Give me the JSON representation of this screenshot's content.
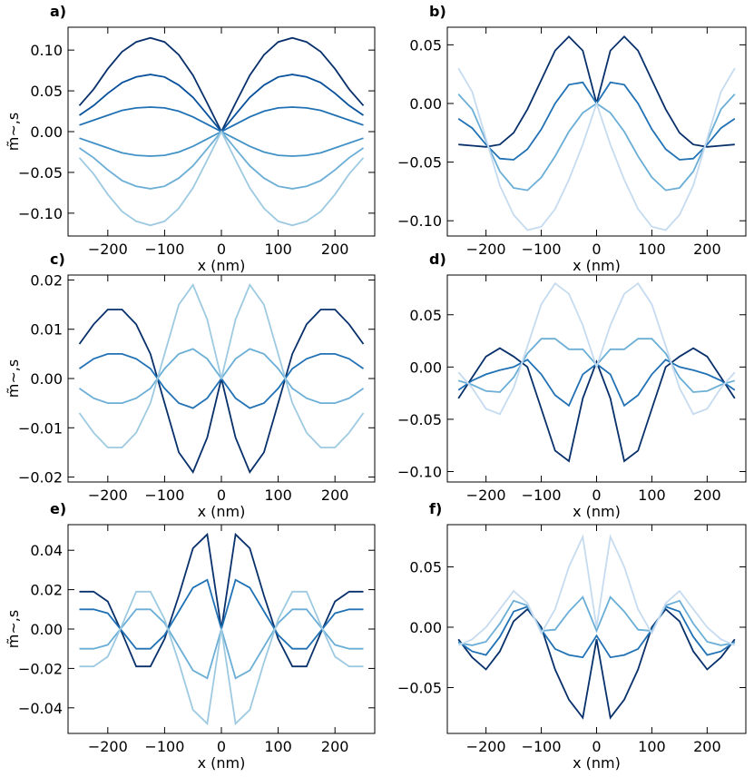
{
  "chart_data": [
    {
      "type": "line",
      "panel_label": "a)",
      "xlabel": "x (nm)",
      "ylabel": "m̃∼,s",
      "x": [
        -250,
        -225,
        -200,
        -175,
        -150,
        -125,
        -100,
        -75,
        -50,
        -25,
        0,
        25,
        50,
        75,
        100,
        125,
        150,
        175,
        200,
        225,
        250
      ],
      "xlim": [
        -270,
        270
      ],
      "ylim": [
        -0.128,
        0.128
      ],
      "xticks": [
        {
          "value": -200,
          "label": "−200"
        },
        {
          "value": -100,
          "label": "−100"
        },
        0,
        100,
        200
      ],
      "yticks": [
        {
          "value": -0.1,
          "label": "−0.10"
        },
        {
          "value": -0.05,
          "label": "−0.05"
        },
        {
          "value": 0,
          "label": "0.00"
        },
        {
          "value": 0.05,
          "label": "0.05"
        },
        {
          "value": 0.1,
          "label": "0.10"
        }
      ],
      "series": [
        {
          "color": "#08306b",
          "values": [
            0.032,
            0.052,
            0.077,
            0.098,
            0.11,
            0.115,
            0.11,
            0.094,
            0.069,
            0.035,
            0,
            0.035,
            0.069,
            0.094,
            0.11,
            0.115,
            0.11,
            0.098,
            0.077,
            0.052,
            0.032
          ]
        },
        {
          "color": "#08519c",
          "values": [
            0.02,
            0.032,
            0.047,
            0.06,
            0.067,
            0.07,
            0.067,
            0.057,
            0.042,
            0.021,
            0,
            0.021,
            0.042,
            0.057,
            0.067,
            0.07,
            0.067,
            0.06,
            0.047,
            0.032,
            0.02
          ]
        },
        {
          "color": "#2171b5",
          "values": [
            0.008,
            0.014,
            0.02,
            0.026,
            0.029,
            0.03,
            0.029,
            0.025,
            0.018,
            0.009,
            0,
            0.009,
            0.018,
            0.025,
            0.029,
            0.03,
            0.029,
            0.026,
            0.02,
            0.014,
            0.008
          ]
        },
        {
          "color": "#4292c6",
          "values": [
            -0.008,
            -0.014,
            -0.02,
            -0.026,
            -0.029,
            -0.03,
            -0.029,
            -0.025,
            -0.018,
            -0.009,
            0,
            -0.009,
            -0.018,
            -0.025,
            -0.029,
            -0.03,
            -0.029,
            -0.026,
            -0.02,
            -0.014,
            -0.008
          ]
        },
        {
          "color": "#6baed6",
          "values": [
            -0.02,
            -0.032,
            -0.047,
            -0.06,
            -0.067,
            -0.07,
            -0.067,
            -0.057,
            -0.042,
            -0.021,
            0,
            -0.021,
            -0.042,
            -0.057,
            -0.067,
            -0.07,
            -0.067,
            -0.06,
            -0.047,
            -0.032,
            -0.02
          ]
        },
        {
          "color": "#9ecae1",
          "values": [
            -0.032,
            -0.052,
            -0.077,
            -0.098,
            -0.11,
            -0.115,
            -0.11,
            -0.094,
            -0.069,
            -0.035,
            0,
            -0.035,
            -0.069,
            -0.094,
            -0.11,
            -0.115,
            -0.11,
            -0.098,
            -0.077,
            -0.052,
            -0.032
          ]
        }
      ]
    },
    {
      "type": "line",
      "panel_label": "b)",
      "xlabel": "x (nm)",
      "x": [
        -250,
        -225,
        -200,
        -175,
        -150,
        -125,
        -100,
        -75,
        -50,
        -25,
        0,
        25,
        50,
        75,
        100,
        125,
        150,
        175,
        200,
        225,
        250
      ],
      "xlim": [
        -270,
        270
      ],
      "ylim": [
        -0.113,
        0.065
      ],
      "xticks": [
        {
          "value": -200,
          "label": "−200"
        },
        {
          "value": -100,
          "label": "−100"
        },
        0,
        100,
        200
      ],
      "yticks": [
        {
          "value": -0.1,
          "label": "−0.10"
        },
        {
          "value": -0.05,
          "label": "−0.05"
        },
        {
          "value": 0,
          "label": "0.00"
        },
        {
          "value": 0.05,
          "label": "0.05"
        }
      ],
      "series": [
        {
          "color": "#08306b",
          "values": [
            -0.035,
            -0.036,
            -0.037,
            -0.035,
            -0.025,
            -0.005,
            0.02,
            0.045,
            0.057,
            0.045,
            0,
            0.045,
            0.057,
            0.045,
            0.02,
            -0.005,
            -0.025,
            -0.035,
            -0.037,
            -0.036,
            -0.035
          ]
        },
        {
          "color": "#2171b5",
          "values": [
            -0.013,
            -0.021,
            -0.035,
            -0.047,
            -0.048,
            -0.039,
            -0.022,
            0.0,
            0.016,
            0.018,
            0,
            0.018,
            0.016,
            0.0,
            -0.022,
            -0.039,
            -0.048,
            -0.047,
            -0.035,
            -0.021,
            -0.013
          ]
        },
        {
          "color": "#6baed6",
          "values": [
            0.008,
            -0.005,
            -0.032,
            -0.058,
            -0.072,
            -0.074,
            -0.063,
            -0.045,
            -0.024,
            -0.008,
            0,
            -0.008,
            -0.024,
            -0.045,
            -0.063,
            -0.074,
            -0.072,
            -0.058,
            -0.032,
            -0.005,
            0.008
          ]
        },
        {
          "color": "#c6dbef",
          "values": [
            0.03,
            0.01,
            -0.03,
            -0.07,
            -0.095,
            -0.108,
            -0.105,
            -0.09,
            -0.065,
            -0.035,
            0,
            -0.035,
            -0.065,
            -0.09,
            -0.105,
            -0.108,
            -0.095,
            -0.07,
            -0.03,
            0.01,
            0.03
          ]
        }
      ]
    },
    {
      "type": "line",
      "panel_label": "c)",
      "xlabel": "x (nm)",
      "ylabel": "m̃∼,s",
      "x": [
        -250,
        -225,
        -200,
        -175,
        -150,
        -125,
        -100,
        -75,
        -50,
        -25,
        0,
        25,
        50,
        75,
        100,
        125,
        150,
        175,
        200,
        225,
        250
      ],
      "xlim": [
        -270,
        270
      ],
      "ylim": [
        -0.021,
        0.021
      ],
      "xticks": [
        {
          "value": -200,
          "label": "−200"
        },
        {
          "value": -100,
          "label": "−100"
        },
        0,
        100,
        200
      ],
      "yticks": [
        {
          "value": -0.02,
          "label": "−0.02"
        },
        {
          "value": -0.01,
          "label": "−0.01"
        },
        {
          "value": 0,
          "label": "0.00"
        },
        {
          "value": 0.01,
          "label": "0.01"
        },
        {
          "value": 0.02,
          "label": "0.02"
        }
      ],
      "series": [
        {
          "color": "#08306b",
          "values": [
            0.007,
            0.011,
            0.014,
            0.014,
            0.011,
            0.005,
            -0.005,
            -0.015,
            -0.019,
            -0.012,
            0,
            -0.012,
            -0.019,
            -0.015,
            -0.005,
            0.005,
            0.011,
            0.014,
            0.014,
            0.011,
            0.007
          ]
        },
        {
          "color": "#2171b5",
          "values": [
            0.002,
            0.004,
            0.005,
            0.005,
            0.004,
            0.002,
            -0.002,
            -0.005,
            -0.006,
            -0.004,
            0,
            -0.004,
            -0.006,
            -0.005,
            -0.002,
            0.002,
            0.004,
            0.005,
            0.005,
            0.004,
            0.002
          ]
        },
        {
          "color": "#6baed6",
          "values": [
            -0.002,
            -0.004,
            -0.005,
            -0.005,
            -0.004,
            -0.002,
            0.002,
            0.005,
            0.006,
            0.004,
            0,
            0.004,
            0.006,
            0.005,
            0.002,
            -0.002,
            -0.004,
            -0.005,
            -0.005,
            -0.004,
            -0.002
          ]
        },
        {
          "color": "#9ecae1",
          "values": [
            -0.007,
            -0.011,
            -0.014,
            -0.014,
            -0.011,
            -0.005,
            0.005,
            0.015,
            0.019,
            0.012,
            0,
            0.012,
            0.019,
            0.015,
            0.005,
            -0.005,
            -0.011,
            -0.014,
            -0.014,
            -0.011,
            -0.007
          ]
        }
      ]
    },
    {
      "type": "line",
      "panel_label": "d)",
      "xlabel": "x (nm)",
      "x": [
        -250,
        -225,
        -200,
        -175,
        -150,
        -125,
        -100,
        -75,
        -50,
        -25,
        0,
        25,
        50,
        75,
        100,
        125,
        150,
        175,
        200,
        225,
        250
      ],
      "xlim": [
        -270,
        270
      ],
      "ylim": [
        -0.11,
        0.088
      ],
      "xticks": [
        {
          "value": -200,
          "label": "−200"
        },
        {
          "value": -100,
          "label": "−100"
        },
        0,
        100,
        200
      ],
      "yticks": [
        {
          "value": -0.1,
          "label": "−0.10"
        },
        {
          "value": -0.05,
          "label": "−0.05"
        },
        {
          "value": 0,
          "label": "0.00"
        },
        {
          "value": 0.05,
          "label": "0.05"
        }
      ],
      "series": [
        {
          "color": "#08306b",
          "values": [
            -0.03,
            -0.01,
            0.01,
            0.018,
            0.01,
            0,
            -0.04,
            -0.08,
            -0.09,
            -0.03,
            0.005,
            -0.03,
            -0.09,
            -0.08,
            -0.04,
            0,
            0.01,
            0.018,
            0.01,
            -0.01,
            -0.03
          ]
        },
        {
          "color": "#2171b5",
          "values": [
            -0.022,
            -0.013,
            -0.007,
            -0.003,
            0,
            0.007,
            -0.007,
            -0.027,
            -0.037,
            -0.007,
            0.003,
            -0.007,
            -0.037,
            -0.027,
            -0.007,
            0.007,
            0,
            -0.003,
            -0.007,
            -0.013,
            -0.022
          ]
        },
        {
          "color": "#6baed6",
          "values": [
            -0.013,
            -0.017,
            -0.023,
            -0.024,
            -0.01,
            0.013,
            0.027,
            0.027,
            0.017,
            0.017,
            0.002,
            0.017,
            0.017,
            0.027,
            0.027,
            0.013,
            -0.01,
            -0.024,
            -0.023,
            -0.017,
            -0.013
          ]
        },
        {
          "color": "#c6dbef",
          "values": [
            -0.005,
            -0.02,
            -0.04,
            -0.045,
            -0.02,
            0.02,
            0.06,
            0.08,
            0.07,
            0.04,
            0,
            0.04,
            0.07,
            0.08,
            0.06,
            0.02,
            -0.02,
            -0.045,
            -0.04,
            -0.02,
            -0.005
          ]
        }
      ]
    },
    {
      "type": "line",
      "panel_label": "e)",
      "xlabel": "x (nm)",
      "ylabel": "m̃∼,s",
      "x": [
        -250,
        -225,
        -200,
        -175,
        -150,
        -125,
        -100,
        -75,
        -50,
        -25,
        0,
        25,
        50,
        75,
        100,
        125,
        150,
        175,
        200,
        225,
        250
      ],
      "xlim": [
        -270,
        270
      ],
      "ylim": [
        -0.053,
        0.053
      ],
      "xticks": [
        {
          "value": -200,
          "label": "−200"
        },
        {
          "value": -100,
          "label": "−100"
        },
        0,
        100,
        200
      ],
      "yticks": [
        {
          "value": -0.04,
          "label": "−0.04"
        },
        {
          "value": -0.02,
          "label": "−0.02"
        },
        {
          "value": 0,
          "label": "0.00"
        },
        {
          "value": 0.02,
          "label": "0.02"
        },
        {
          "value": 0.04,
          "label": "0.04"
        }
      ],
      "series": [
        {
          "color": "#08306b",
          "values": [
            0.019,
            0.019,
            0.014,
            -0.002,
            -0.019,
            -0.019,
            -0.005,
            0.017,
            0.041,
            0.048,
            0,
            0.048,
            0.041,
            0.017,
            -0.005,
            -0.019,
            -0.019,
            -0.002,
            0.014,
            0.019,
            0.019
          ]
        },
        {
          "color": "#2171b5",
          "values": [
            0.01,
            0.01,
            0.008,
            -0.001,
            -0.01,
            -0.01,
            -0.003,
            0.009,
            0.021,
            0.025,
            0,
            0.025,
            0.021,
            0.009,
            -0.003,
            -0.01,
            -0.01,
            -0.001,
            0.008,
            0.01,
            0.01
          ]
        },
        {
          "color": "#6baed6",
          "values": [
            -0.01,
            -0.01,
            -0.008,
            0.001,
            0.01,
            0.01,
            0.003,
            -0.009,
            -0.021,
            -0.025,
            0,
            -0.025,
            -0.021,
            -0.009,
            0.003,
            0.01,
            0.01,
            0.001,
            -0.008,
            -0.01,
            -0.01
          ]
        },
        {
          "color": "#9ecae1",
          "values": [
            -0.019,
            -0.019,
            -0.014,
            0.002,
            0.019,
            0.019,
            0.005,
            -0.017,
            -0.041,
            -0.048,
            0,
            -0.048,
            -0.041,
            -0.017,
            0.005,
            0.019,
            0.019,
            0.002,
            -0.014,
            -0.019,
            -0.019
          ]
        }
      ]
    },
    {
      "type": "line",
      "panel_label": "f)",
      "xlabel": "x (nm)",
      "x": [
        -250,
        -225,
        -200,
        -175,
        -150,
        -125,
        -100,
        -75,
        -50,
        -25,
        0,
        25,
        50,
        75,
        100,
        125,
        150,
        175,
        200,
        225,
        250
      ],
      "xlim": [
        -270,
        270
      ],
      "ylim": [
        -0.088,
        0.085
      ],
      "xticks": [
        {
          "value": -200,
          "label": "−200"
        },
        {
          "value": -100,
          "label": "−100"
        },
        0,
        100,
        200
      ],
      "yticks": [
        {
          "value": -0.05,
          "label": "−0.05"
        },
        {
          "value": 0,
          "label": "0.00"
        },
        {
          "value": 0.05,
          "label": "0.05"
        }
      ],
      "series": [
        {
          "color": "#08306b",
          "values": [
            -0.01,
            -0.025,
            -0.035,
            -0.02,
            0.005,
            0.015,
            0,
            -0.035,
            -0.06,
            -0.075,
            -0.01,
            -0.075,
            -0.06,
            -0.035,
            0,
            0.015,
            0.005,
            -0.02,
            -0.035,
            -0.025,
            -0.01
          ]
        },
        {
          "color": "#2171b5",
          "values": [
            -0.012,
            -0.02,
            -0.023,
            -0.008,
            0.013,
            0.017,
            -0.002,
            -0.018,
            -0.023,
            -0.025,
            -0.007,
            -0.025,
            -0.023,
            -0.018,
            -0.002,
            0.017,
            0.013,
            -0.008,
            -0.023,
            -0.02,
            -0.012
          ]
        },
        {
          "color": "#6baed6",
          "values": [
            -0.013,
            -0.015,
            -0.012,
            0.003,
            0.022,
            0.018,
            -0.003,
            -0.002,
            0.013,
            0.025,
            -0.003,
            0.025,
            0.013,
            -0.002,
            -0.003,
            0.018,
            0.022,
            0.003,
            -0.012,
            -0.015,
            -0.013
          ]
        },
        {
          "color": "#c6dbef",
          "values": [
            -0.015,
            -0.01,
            0,
            0.015,
            0.03,
            0.02,
            -0.005,
            0.015,
            0.05,
            0.075,
            0,
            0.075,
            0.05,
            0.015,
            -0.005,
            0.02,
            0.03,
            0.015,
            0,
            -0.01,
            -0.015
          ]
        }
      ]
    }
  ]
}
